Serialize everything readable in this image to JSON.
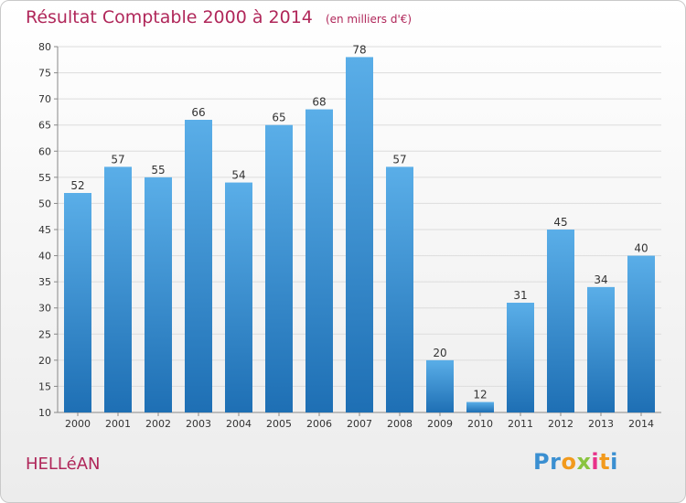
{
  "header": {
    "title": "Résultat Comptable 2000 à 2014",
    "subtitle": "(en milliers d'€)"
  },
  "footer": {
    "town": "HELLéAN",
    "logo_text": "Proxiti"
  },
  "colors": {
    "title": "#b0275a",
    "bar_top": "#5aaee8",
    "bar_bottom": "#1e6fb4",
    "grid": "#dcdcdc",
    "logo_letters": [
      "#3a8fd1",
      "#3a8fd1",
      "#f29a1d",
      "#8ac43f",
      "#e8318a",
      "#f29a1d",
      "#3a8fd1"
    ]
  },
  "chart_data": {
    "type": "bar",
    "title": "Résultat Comptable 2000 à 2014",
    "subtitle": "(en milliers d'€)",
    "xlabel": "",
    "ylabel": "",
    "categories": [
      "2000",
      "2001",
      "2002",
      "2003",
      "2004",
      "2005",
      "2006",
      "2007",
      "2008",
      "2009",
      "2010",
      "2011",
      "2012",
      "2013",
      "2014"
    ],
    "values": [
      52,
      57,
      55,
      66,
      54,
      65,
      68,
      78,
      57,
      20,
      12,
      31,
      45,
      34,
      40
    ],
    "ylim": [
      10,
      80
    ],
    "yticks": [
      10,
      15,
      20,
      25,
      30,
      35,
      40,
      45,
      50,
      55,
      60,
      65,
      70,
      75,
      80
    ],
    "grid": true,
    "data_labels": true
  }
}
